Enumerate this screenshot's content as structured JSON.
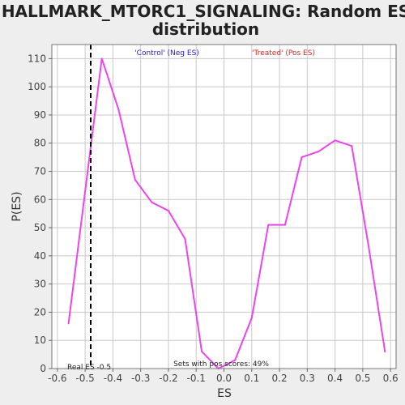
{
  "chart_data": {
    "type": "line",
    "title_lines": [
      "HALLMARK_MTORC1_SIGNALING: Random ES",
      "distribution"
    ],
    "xlabel": "ES",
    "ylabel": "P(ES)",
    "xlim": [
      -0.62,
      0.62
    ],
    "ylim": [
      0,
      115
    ],
    "x_ticks": [
      -0.6,
      -0.5,
      -0.4,
      -0.3,
      -0.2,
      -0.1,
      0.0,
      0.1,
      0.2,
      0.3,
      0.4,
      0.5,
      0.6
    ],
    "x_tick_labels": [
      "-0.6",
      "-0.5",
      "-0.4",
      "-0.3",
      "-0.2",
      "-0.1",
      "0.0",
      "0.1",
      "0.2",
      "0.3",
      "0.4",
      "0.5",
      "0.6"
    ],
    "y_ticks": [
      0,
      10,
      20,
      30,
      40,
      50,
      60,
      70,
      80,
      90,
      100,
      110
    ],
    "y_tick_labels": [
      "0",
      "10",
      "20",
      "30",
      "40",
      "50",
      "60",
      "70",
      "80",
      "90",
      "100",
      "110"
    ],
    "grid": true,
    "series": [
      {
        "color": "#ee44ee",
        "x": [
          -0.56,
          -0.44,
          -0.38,
          -0.32,
          -0.26,
          -0.2,
          -0.14,
          -0.08,
          -0.02,
          0.04,
          0.1,
          0.16,
          0.22,
          0.28,
          0.34,
          0.4,
          0.46,
          0.52,
          0.58
        ],
        "y": [
          16,
          110,
          92,
          67,
          59,
          56,
          46,
          6,
          0,
          3,
          18,
          51,
          51,
          75,
          77,
          81,
          79,
          44,
          6
        ]
      }
    ],
    "real_es": {
      "x": -0.48,
      "label": "Real ES -0.5"
    },
    "annotations": {
      "control": {
        "text": "'Control' (Neg ES)",
        "color": "#2222cc"
      },
      "treated": {
        "text": "'Treated' (Pos ES)",
        "color": "#dd2222"
      },
      "pos_scores": {
        "text": "Sets with pos scores: 49%",
        "color": "#222222"
      }
    },
    "colors": {
      "page_bg": "#eeeeee",
      "plot_bg": "#ffffff",
      "grid": "#c8c8c8"
    }
  }
}
